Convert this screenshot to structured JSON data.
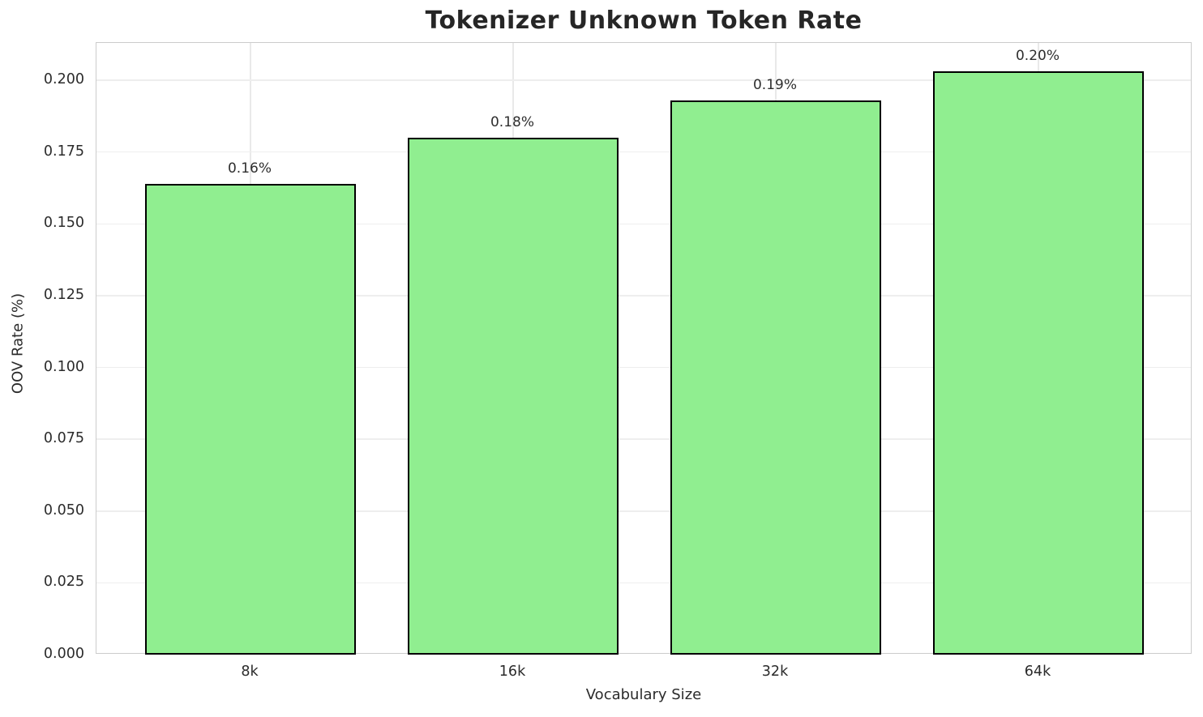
{
  "chart_data": {
    "type": "bar",
    "title": "Tokenizer Unknown Token Rate",
    "xlabel": "Vocabulary Size",
    "ylabel": "OOV Rate (%)",
    "categories": [
      "8k",
      "16k",
      "32k",
      "64k"
    ],
    "values": [
      0.164,
      0.18,
      0.193,
      0.203
    ],
    "bar_labels": [
      "0.16%",
      "0.18%",
      "0.19%",
      "0.20%"
    ],
    "ylim": [
      0,
      0.213
    ],
    "yticks": [
      0.0,
      0.025,
      0.05,
      0.075,
      0.1,
      0.125,
      0.15,
      0.175,
      0.2
    ],
    "ytick_labels": [
      "0.000",
      "0.025",
      "0.050",
      "0.075",
      "0.100",
      "0.125",
      "0.150",
      "0.175",
      "0.200"
    ],
    "grid": true,
    "legend_position": "none",
    "colors": {
      "bar_fill": "#90EE90",
      "bar_edge": "#000000",
      "grid_h": "#eeeeee",
      "grid_v": "#e9e9e9",
      "spine": "#cccccc",
      "tick_text": "#2b2b2b",
      "title_text": "#262626",
      "bar_label_text": "#2e2e2e"
    }
  }
}
